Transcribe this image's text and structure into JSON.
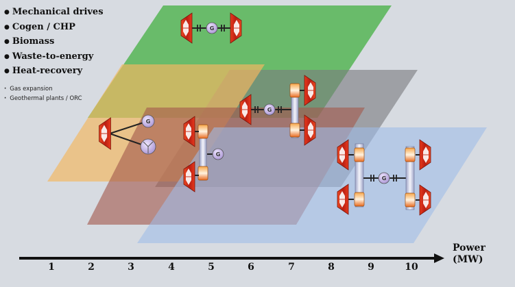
{
  "legend": {
    "main_items": [
      "Mechanical drives",
      "Cogen / CHP",
      "Biomass",
      "Waste-to-energy",
      "Heat-recovery"
    ],
    "sub_items": [
      "Gas expansion",
      "Geothermal plants / ORC"
    ]
  },
  "axis": {
    "label_line1": "Power",
    "label_line2": "(MW)",
    "ticks": [
      "1",
      "2",
      "3",
      "4",
      "5",
      "6",
      "7",
      "8",
      "9",
      "10"
    ]
  },
  "generator_label": "G",
  "colors": {
    "green_plane": "#3fae3c",
    "orange_plane": "#f3b762",
    "gray_plane": "#7b7d80",
    "brown_plane": "#a35a4e",
    "blue_plane": "#9fbce8",
    "turbine_red": "#e33b22",
    "gear_orange": "#f08a2a",
    "generator_purple": "#b9a6d8"
  }
}
